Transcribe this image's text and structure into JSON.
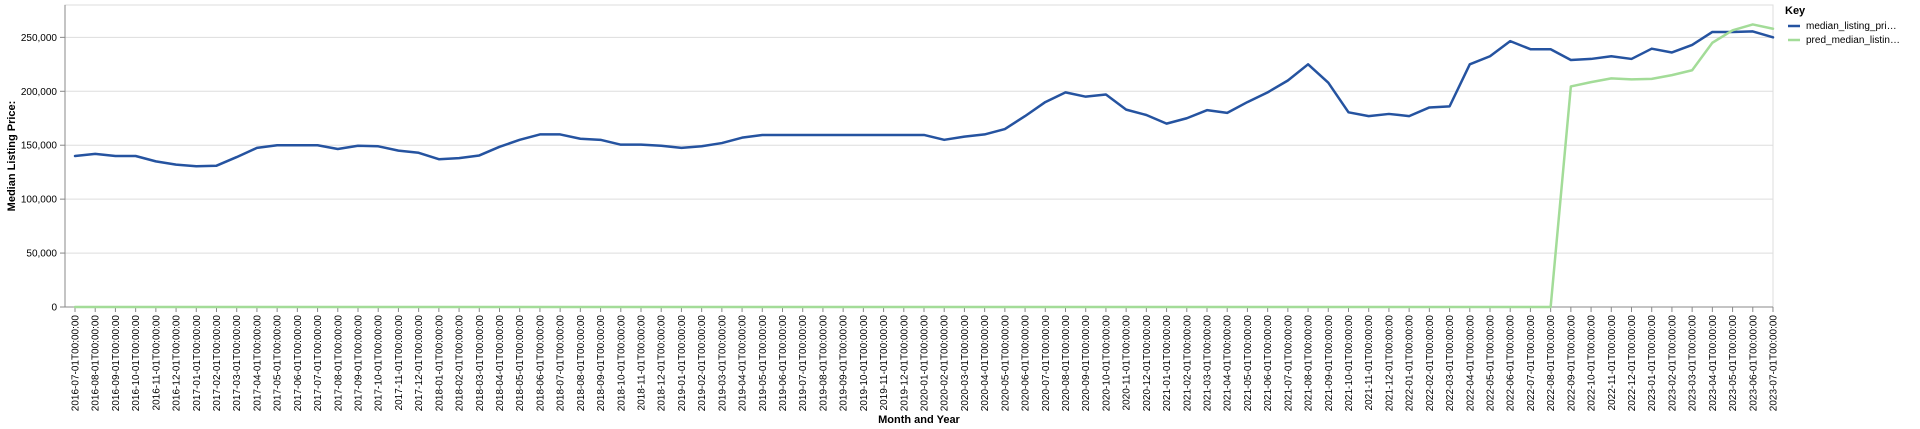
{
  "chart_data": {
    "type": "line",
    "xlabel": "Month and Year",
    "ylabel": "Median Listing Price:",
    "ylim": [
      0,
      280000
    ],
    "yticks": [
      0,
      50000,
      100000,
      150000,
      200000,
      250000
    ],
    "ytick_labels": [
      "0",
      "50,000",
      "100,000",
      "150,000",
      "200,000",
      "250,000"
    ],
    "grid": true,
    "legend": {
      "title": "Key",
      "position": "top-right"
    },
    "x": [
      "2016-07-01T00:00:00",
      "2016-08-01T00:00:00",
      "2016-09-01T00:00:00",
      "2016-10-01T00:00:00",
      "2016-11-01T00:00:00",
      "2016-12-01T00:00:00",
      "2017-01-01T00:00:00",
      "2017-02-01T00:00:00",
      "2017-03-01T00:00:00",
      "2017-04-01T00:00:00",
      "2017-05-01T00:00:00",
      "2017-06-01T00:00:00",
      "2017-07-01T00:00:00",
      "2017-08-01T00:00:00",
      "2017-09-01T00:00:00",
      "2017-10-01T00:00:00",
      "2017-11-01T00:00:00",
      "2017-12-01T00:00:00",
      "2018-01-01T00:00:00",
      "2018-02-01T00:00:00",
      "2018-03-01T00:00:00",
      "2018-04-01T00:00:00",
      "2018-05-01T00:00:00",
      "2018-06-01T00:00:00",
      "2018-07-01T00:00:00",
      "2018-08-01T00:00:00",
      "2018-09-01T00:00:00",
      "2018-10-01T00:00:00",
      "2018-11-01T00:00:00",
      "2018-12-01T00:00:00",
      "2019-01-01T00:00:00",
      "2019-02-01T00:00:00",
      "2019-03-01T00:00:00",
      "2019-04-01T00:00:00",
      "2019-05-01T00:00:00",
      "2019-06-01T00:00:00",
      "2019-07-01T00:00:00",
      "2019-08-01T00:00:00",
      "2019-09-01T00:00:00",
      "2019-10-01T00:00:00",
      "2019-11-01T00:00:00",
      "2019-12-01T00:00:00",
      "2020-01-01T00:00:00",
      "2020-02-01T00:00:00",
      "2020-03-01T00:00:00",
      "2020-04-01T00:00:00",
      "2020-05-01T00:00:00",
      "2020-06-01T00:00:00",
      "2020-07-01T00:00:00",
      "2020-08-01T00:00:00",
      "2020-09-01T00:00:00",
      "2020-10-01T00:00:00",
      "2020-11-01T00:00:00",
      "2020-12-01T00:00:00",
      "2021-01-01T00:00:00",
      "2021-02-01T00:00:00",
      "2021-03-01T00:00:00",
      "2021-04-01T00:00:00",
      "2021-05-01T00:00:00",
      "2021-06-01T00:00:00",
      "2021-07-01T00:00:00",
      "2021-08-01T00:00:00",
      "2021-09-01T00:00:00",
      "2021-10-01T00:00:00",
      "2021-11-01T00:00:00",
      "2021-12-01T00:00:00",
      "2022-01-01T00:00:00",
      "2022-02-01T00:00:00",
      "2022-03-01T00:00:00",
      "2022-04-01T00:00:00",
      "2022-05-01T00:00:00",
      "2022-06-01T00:00:00",
      "2022-07-01T00:00:00",
      "2022-08-01T00:00:00",
      "2022-09-01T00:00:00",
      "2022-10-01T00:00:00",
      "2022-11-01T00:00:00",
      "2022-12-01T00:00:00",
      "2023-01-01T00:00:00",
      "2023-02-01T00:00:00",
      "2023-03-01T00:00:00",
      "2023-04-01T00:00:00",
      "2023-05-01T00:00:00",
      "2023-06-01T00:00:00",
      "2023-07-01T00:00:00"
    ],
    "series": [
      {
        "name": "median_listing_pri…",
        "color": "#2553a0",
        "values": [
          140000,
          142000,
          140000,
          140000,
          135000,
          132000,
          130500,
          131000,
          139000,
          147500,
          150000,
          150000,
          150000,
          146500,
          149500,
          149000,
          145000,
          143000,
          137000,
          138000,
          140500,
          148500,
          155000,
          160000,
          160000,
          156000,
          155000,
          150500,
          150500,
          149500,
          147500,
          149000,
          152000,
          157000,
          159500,
          159500,
          159500,
          159500,
          159500,
          159500,
          159500,
          159500,
          159500,
          155000,
          158000,
          160000,
          165000,
          177000,
          190000,
          199000,
          195000,
          197000,
          183000,
          178000,
          170000,
          175000,
          182500,
          180000,
          190000,
          199000,
          210000,
          225000,
          208000,
          180500,
          177000,
          179000,
          177000,
          185000,
          186000,
          225000,
          232500,
          246500,
          239000,
          239000,
          229000,
          230000,
          232500,
          230000,
          239500,
          236000,
          243000,
          255000,
          255000,
          255500,
          250000
        ]
      },
      {
        "name": "pred_median_listin…",
        "color": "#a3dc98",
        "values": [
          0,
          0,
          0,
          0,
          0,
          0,
          0,
          0,
          0,
          0,
          0,
          0,
          0,
          0,
          0,
          0,
          0,
          0,
          0,
          0,
          0,
          0,
          0,
          0,
          0,
          0,
          0,
          0,
          0,
          0,
          0,
          0,
          0,
          0,
          0,
          0,
          0,
          0,
          0,
          0,
          0,
          0,
          0,
          0,
          0,
          0,
          0,
          0,
          0,
          0,
          0,
          0,
          0,
          0,
          0,
          0,
          0,
          0,
          0,
          0,
          0,
          0,
          0,
          0,
          0,
          0,
          0,
          0,
          0,
          0,
          0,
          0,
          0,
          0,
          204500,
          208500,
          212000,
          211000,
          211500,
          215000,
          219500,
          245000,
          256500,
          262000,
          258000
        ]
      }
    ]
  }
}
